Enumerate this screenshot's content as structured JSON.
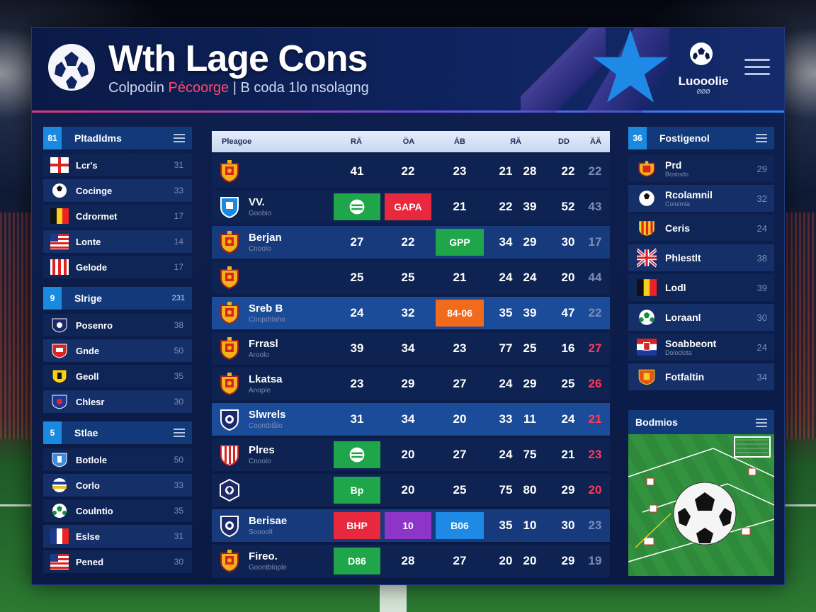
{
  "header": {
    "title": "Wth Lage Cons",
    "subtitle_a": "Colpodin",
    "subtitle_b": "Pécoorge",
    "subtitle_c": "| B coda 1lo nsolagng",
    "brand": "Luooolie",
    "brand_sub": "ØØØ"
  },
  "sidebar": {
    "sections": [
      {
        "num": "81",
        "label": "Pltadldms",
        "has_menu": true,
        "items": [
          {
            "name": "Lcr's",
            "num": "31",
            "flag": "england"
          },
          {
            "name": "Cocinge",
            "num": "33",
            "flag": "ball"
          },
          {
            "name": "Cdrormet",
            "num": "17",
            "flag": "belgium"
          },
          {
            "name": "Lonte",
            "num": "14",
            "flag": "usa"
          },
          {
            "name": "Gelode",
            "num": "17",
            "flag": "stripes"
          }
        ]
      },
      {
        "num": "9",
        "label": "Slrige",
        "value": "231",
        "items": [
          {
            "name": "Posenro",
            "num": "38",
            "flag": "shield-navy"
          },
          {
            "name": "Gnde",
            "num": "50",
            "flag": "shield-red"
          },
          {
            "name": "Geoll",
            "num": "35",
            "flag": "shield-yellow"
          },
          {
            "name": "Chlesr",
            "num": "30",
            "flag": "shield-blue"
          }
        ]
      },
      {
        "num": "5",
        "label": "Stlae",
        "has_menu": true,
        "items": [
          {
            "name": "Botlole",
            "num": "50",
            "flag": "shield-lblue"
          },
          {
            "name": "Corlo",
            "num": "33",
            "flag": "ball-blue"
          },
          {
            "name": "Coulntio",
            "num": "35",
            "flag": "ball-green"
          },
          {
            "name": "Eslse",
            "num": "31",
            "flag": "france"
          },
          {
            "name": "Pened",
            "num": "30",
            "flag": "usa"
          }
        ]
      }
    ]
  },
  "table": {
    "headers": [
      "Pleagoe",
      "RÄ",
      "ÖA",
      "ÁB",
      "ЯÄ",
      "DD",
      "ÄÄ"
    ],
    "rows": [
      {
        "name": "",
        "sub": "",
        "c1": "41",
        "c2": "22",
        "c3": "23",
        "c4a": "21",
        "c4b": "28",
        "c5": "22",
        "c6": "22",
        "crest": "gold",
        "style": "normal"
      },
      {
        "name": "VV.",
        "sub": "Goobio",
        "c1": "",
        "c2": "GAPA",
        "c3": "21",
        "c4a": "22",
        "c4b": "39",
        "c5": "52",
        "c6": "43",
        "crest": "blue",
        "style": "normal",
        "chip1": "green-icon",
        "chip2": "red"
      },
      {
        "name": "Berjan",
        "sub": "Cnoolo",
        "c1": "27",
        "c2": "22",
        "c3": "GPP",
        "c4a": "34",
        "c4b": "29",
        "c5": "30",
        "c6": "17",
        "crest": "gold",
        "style": "mid",
        "chip3": "green"
      },
      {
        "name": "",
        "sub": "",
        "c1": "25",
        "c2": "25",
        "c3": "21",
        "c4a": "24",
        "c4b": "24",
        "c5": "20",
        "c6": "44",
        "crest": "gold",
        "style": "normal"
      },
      {
        "name": "Sreb B",
        "sub": "Coopdrlaho",
        "c1": "24",
        "c2": "32",
        "c3": "84-06",
        "c4a": "35",
        "c4b": "39",
        "c5": "47",
        "c6": "22",
        "crest": "gold",
        "style": "hl",
        "chip3": "orange"
      },
      {
        "name": "Frrasl",
        "sub": "Aroolo",
        "c1": "39",
        "c2": "34",
        "c3": "23",
        "c4a": "77",
        "c4b": "25",
        "c5": "16",
        "c6": "27",
        "crest": "gold",
        "style": "normal",
        "c6red": true
      },
      {
        "name": "Lkatsa",
        "sub": "Anople",
        "c1": "23",
        "c2": "29",
        "c3": "27",
        "c4a": "24",
        "c4b": "29",
        "c5": "25",
        "c6": "26",
        "crest": "gold",
        "style": "normal",
        "c6red": true
      },
      {
        "name": "Slwrels",
        "sub": "Coontblålo",
        "c1": "31",
        "c2": "34",
        "c3": "20",
        "c4a": "33",
        "c4b": "11",
        "c5": "24",
        "c6": "21",
        "crest": "navy",
        "style": "hl",
        "c6red": true
      },
      {
        "name": "Plres",
        "sub": "Cnoolo",
        "c1": "",
        "c2": "20",
        "c3": "27",
        "c4a": "24",
        "c4b": "75",
        "c5": "21",
        "c6": "23",
        "crest": "stripes",
        "style": "normal",
        "c6red": true,
        "chip1": "green-icon"
      },
      {
        "name": "",
        "sub": "",
        "c1": "Bp",
        "c2": "20",
        "c3": "25",
        "c4a": "75",
        "c4b": "80",
        "c5": "29",
        "c6": "20",
        "crest": "hex",
        "style": "normal",
        "c6red": true,
        "chip1": "green"
      },
      {
        "name": "Berisae",
        "sub": "Soooolt",
        "c1": "BHP",
        "c2": "10",
        "c3": "B06",
        "c4a": "35",
        "c4b": "10",
        "c5": "30",
        "c6": "23",
        "crest": "navy",
        "style": "mid",
        "chip1": "red",
        "chip2": "purple",
        "chip3": "blue"
      },
      {
        "name": "Fireo.",
        "sub": "Goontblople",
        "c1": "D86",
        "c2": "28",
        "c3": "27",
        "c4a": "20",
        "c4b": "20",
        "c5": "29",
        "c6": "19",
        "crest": "gold",
        "style": "normal",
        "chip1": "green"
      }
    ]
  },
  "right": {
    "head_num": "36",
    "head_label": "Fostigenol",
    "items": [
      {
        "name": "Prd",
        "sub": "Bostodo",
        "num": "29",
        "flag": "gold"
      },
      {
        "name": "Rcolamnil",
        "sub": "Cololmla",
        "num": "32",
        "flag": "ball"
      },
      {
        "name": "Ceris",
        "sub": "",
        "num": "24",
        "flag": "spain"
      },
      {
        "name": "Phlestlt",
        "sub": "",
        "num": "38",
        "flag": "uk"
      },
      {
        "name": "Lodl",
        "sub": "",
        "num": "39",
        "flag": "belgium"
      },
      {
        "name": "Loraanl",
        "sub": "",
        "num": "30",
        "flag": "ball-green"
      },
      {
        "name": "Soabbeont",
        "sub": "Doloclota",
        "num": "24",
        "flag": "croatia"
      },
      {
        "name": "Fotfaltin",
        "sub": "",
        "num": "34",
        "flag": "shield-orange"
      }
    ],
    "mini_label": "Bodmios"
  }
}
